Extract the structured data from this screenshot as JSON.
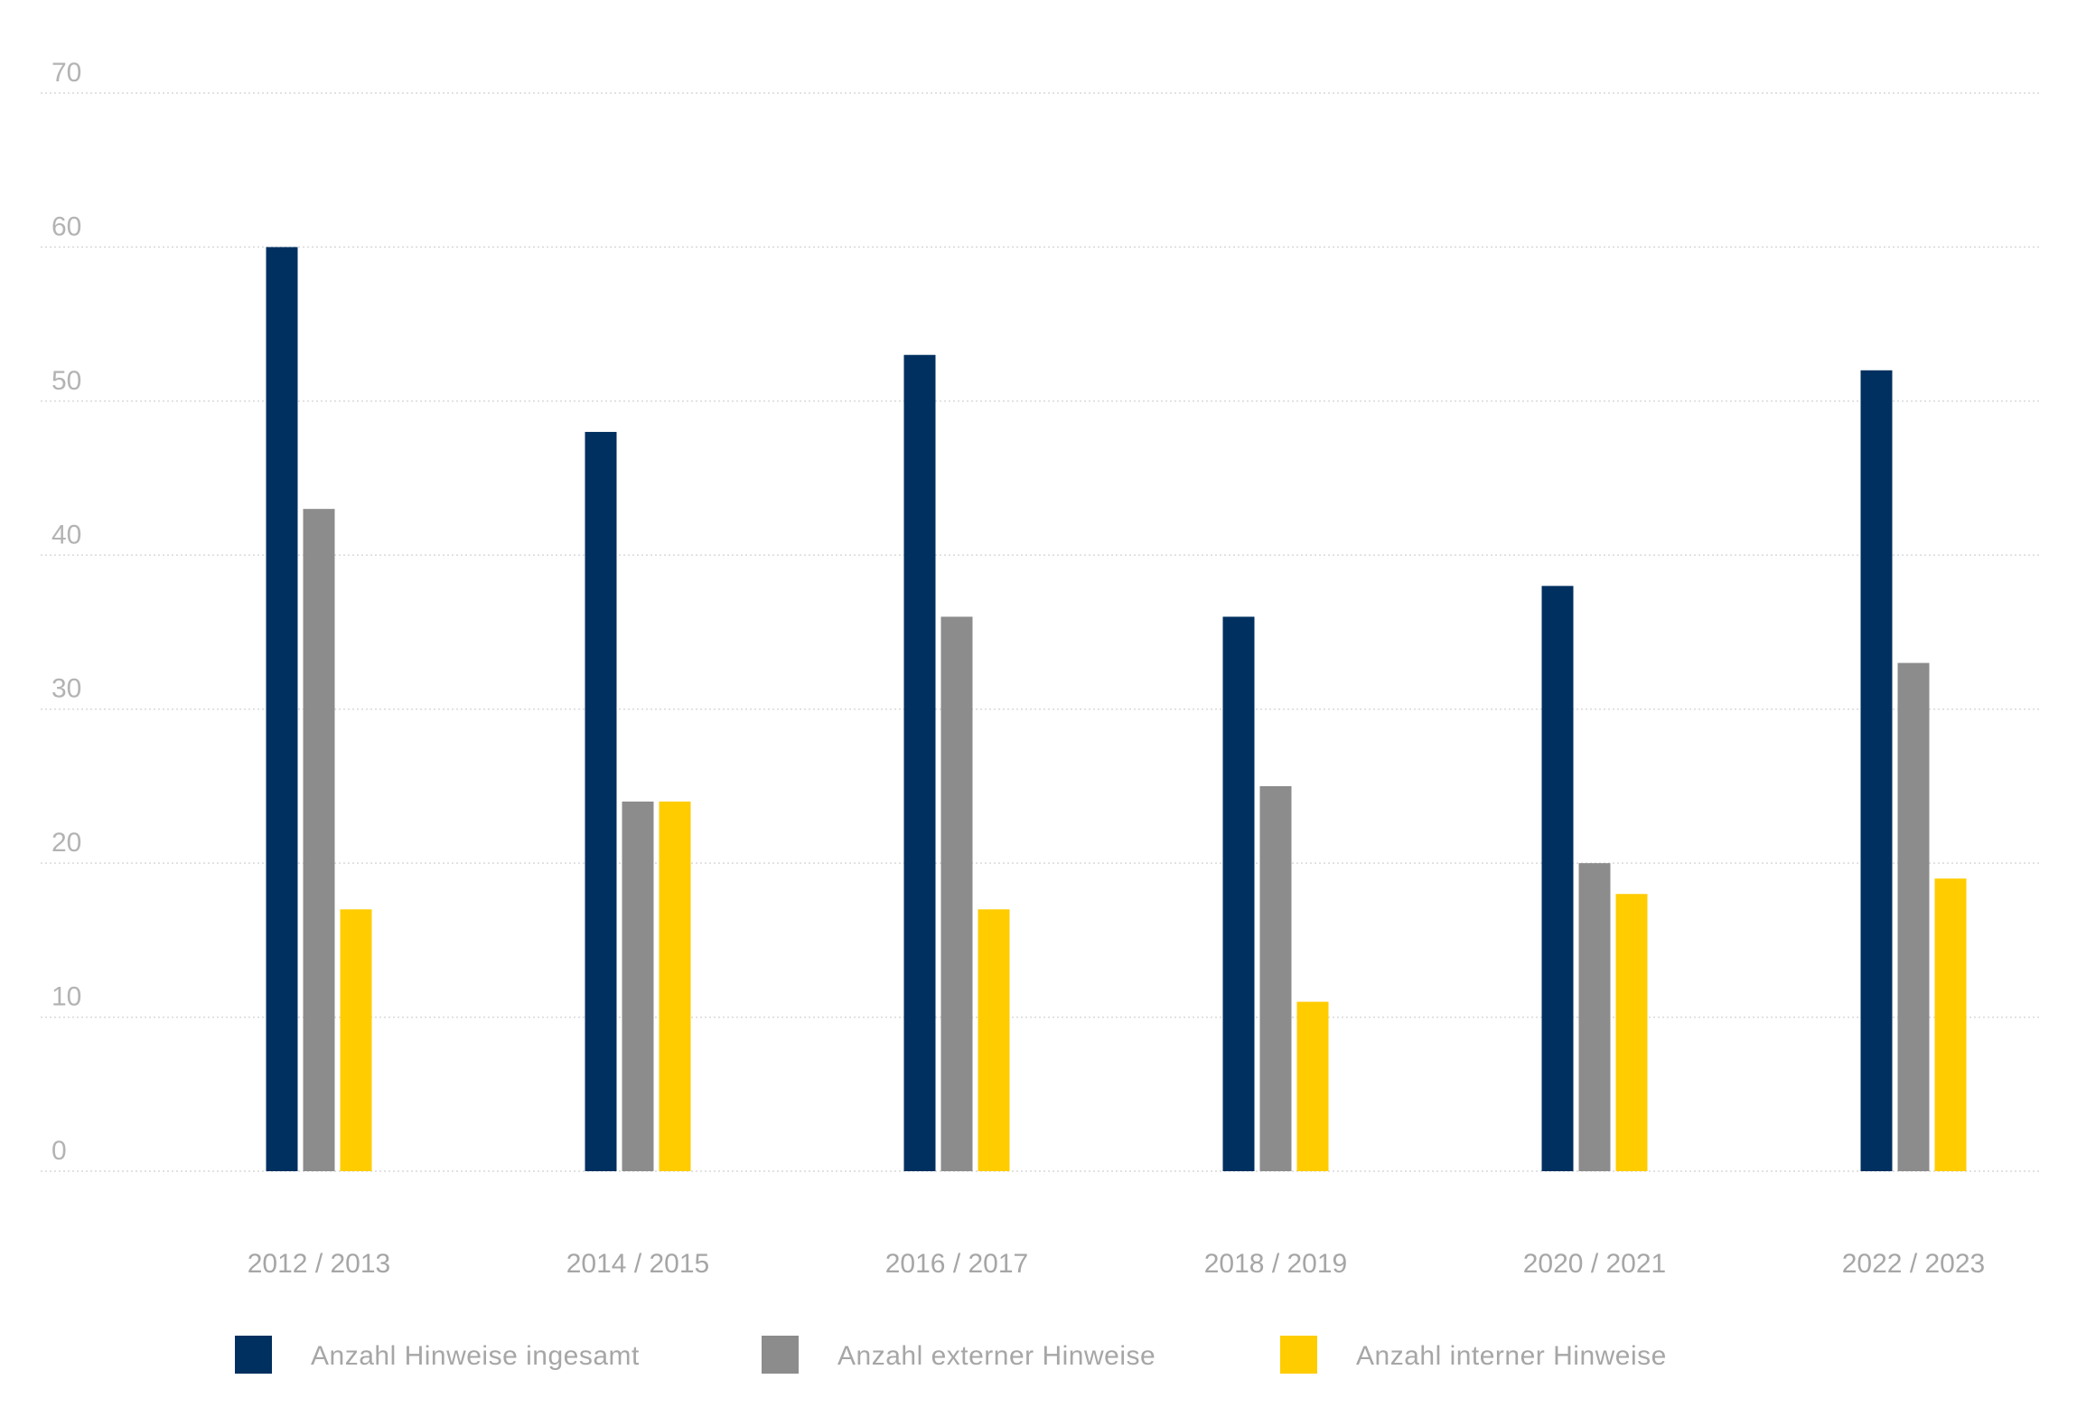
{
  "chart_data": {
    "type": "bar",
    "title": "",
    "xlabel": "",
    "ylabel": "",
    "ylim": [
      0,
      70
    ],
    "yticks": [
      0,
      10,
      20,
      30,
      40,
      50,
      60,
      70
    ],
    "grid": true,
    "legend_position": "bottom",
    "categories": [
      "2012 / 2013",
      "2014 / 2015",
      "2016 / 2017",
      "2018 / 2019",
      "2020 / 2021",
      "2022 / 2023"
    ],
    "series": [
      {
        "name": "Anzahl Hinweise ingesamt",
        "color": "#003060",
        "values": [
          60,
          48,
          53,
          36,
          38,
          52
        ]
      },
      {
        "name": "Anzahl externer Hinweise",
        "color": "#8c8c8c",
        "values": [
          43,
          24,
          36,
          25,
          20,
          33
        ]
      },
      {
        "name": "Anzahl interner Hinweise",
        "color": "#ffcc00",
        "values": [
          17,
          24,
          17,
          11,
          18,
          19
        ]
      }
    ]
  }
}
